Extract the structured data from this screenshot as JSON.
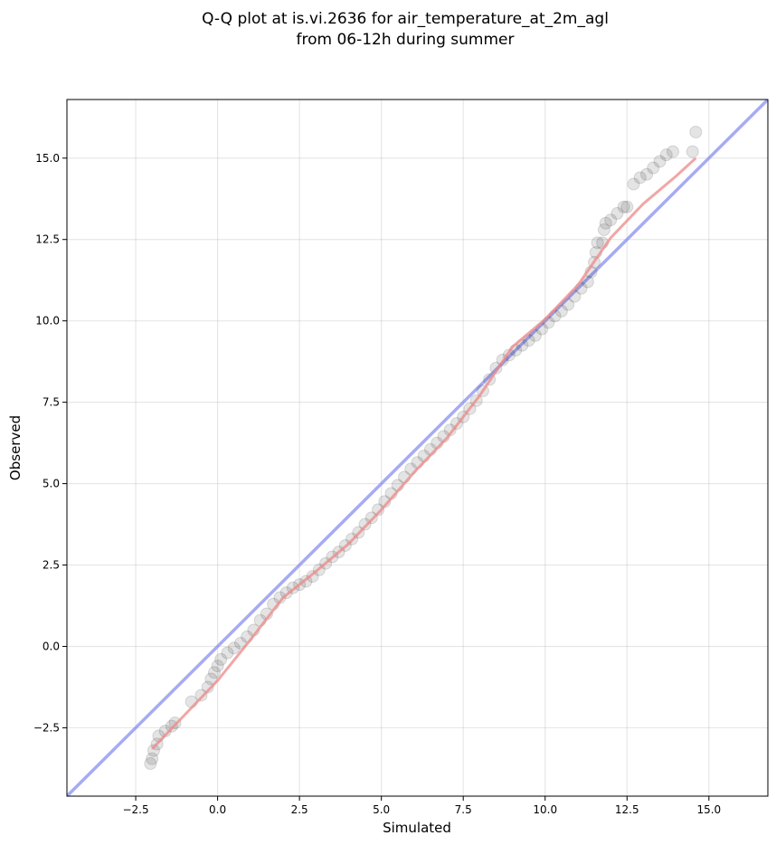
{
  "chart_data": {
    "type": "scatter",
    "title_lines": [
      "Q-Q plot at is.vi.2636 for air_temperature_at_2m_agl",
      "from 06-12h during summer"
    ],
    "xlabel": "Simulated",
    "ylabel": "Observed",
    "xlim": [
      -4.6,
      16.8
    ],
    "ylim": [
      -4.6,
      16.8
    ],
    "x_ticks": [
      -2.5,
      0.0,
      2.5,
      5.0,
      7.5,
      10.0,
      12.5,
      15.0
    ],
    "x_tick_labels": [
      "−2.5",
      "0.0",
      "2.5",
      "5.0",
      "7.5",
      "10.0",
      "12.5",
      "15.0"
    ],
    "y_ticks": [
      -2.5,
      0.0,
      2.5,
      5.0,
      7.5,
      10.0,
      12.5,
      15.0
    ],
    "y_tick_labels": [
      "−2.5",
      "0.0",
      "2.5",
      "5.0",
      "7.5",
      "10.0",
      "12.5",
      "15.0"
    ],
    "grid": true,
    "identity_line": {
      "from": [
        -4.6,
        -4.6
      ],
      "to": [
        16.8,
        16.8
      ],
      "color": "#8088ee"
    },
    "fit_line": {
      "color": "#ee8888",
      "points": [
        [
          -2.0,
          -3.15
        ],
        [
          -1.0,
          -2.1
        ],
        [
          0.0,
          -1.05
        ],
        [
          1.0,
          0.2
        ],
        [
          2.0,
          1.5
        ],
        [
          3.0,
          2.3
        ],
        [
          4.0,
          3.15
        ],
        [
          5.0,
          4.2
        ],
        [
          6.0,
          5.35
        ],
        [
          7.0,
          6.4
        ],
        [
          8.0,
          7.7
        ],
        [
          9.0,
          9.2
        ],
        [
          10.0,
          10.05
        ],
        [
          11.0,
          11.1
        ],
        [
          12.0,
          12.55
        ],
        [
          13.0,
          13.6
        ],
        [
          14.0,
          14.45
        ],
        [
          14.6,
          15.0
        ]
      ]
    },
    "series": [
      {
        "color": "#222222",
        "points": [
          [
            -2.05,
            -3.6
          ],
          [
            -2.0,
            -3.45
          ],
          [
            -1.95,
            -3.2
          ],
          [
            -1.85,
            -3.0
          ],
          [
            -1.8,
            -2.75
          ],
          [
            -1.6,
            -2.6
          ],
          [
            -1.4,
            -2.45
          ],
          [
            -1.3,
            -2.35
          ],
          [
            -0.8,
            -1.7
          ],
          [
            -0.5,
            -1.5
          ],
          [
            -0.3,
            -1.25
          ],
          [
            -0.2,
            -1.0
          ],
          [
            -0.1,
            -0.8
          ],
          [
            0.0,
            -0.6
          ],
          [
            0.1,
            -0.4
          ],
          [
            0.3,
            -0.2
          ],
          [
            0.5,
            -0.05
          ],
          [
            0.7,
            0.1
          ],
          [
            0.9,
            0.3
          ],
          [
            1.1,
            0.5
          ],
          [
            1.3,
            0.8
          ],
          [
            1.5,
            1.0
          ],
          [
            1.7,
            1.3
          ],
          [
            1.9,
            1.5
          ],
          [
            2.1,
            1.65
          ],
          [
            2.3,
            1.8
          ],
          [
            2.5,
            1.9
          ],
          [
            2.7,
            2.0
          ],
          [
            2.9,
            2.15
          ],
          [
            3.1,
            2.35
          ],
          [
            3.3,
            2.55
          ],
          [
            3.5,
            2.75
          ],
          [
            3.7,
            2.9
          ],
          [
            3.9,
            3.1
          ],
          [
            4.1,
            3.3
          ],
          [
            4.3,
            3.5
          ],
          [
            4.5,
            3.75
          ],
          [
            4.7,
            3.95
          ],
          [
            4.9,
            4.2
          ],
          [
            5.1,
            4.45
          ],
          [
            5.3,
            4.7
          ],
          [
            5.5,
            4.95
          ],
          [
            5.7,
            5.2
          ],
          [
            5.9,
            5.45
          ],
          [
            6.1,
            5.65
          ],
          [
            6.3,
            5.85
          ],
          [
            6.5,
            6.05
          ],
          [
            6.7,
            6.25
          ],
          [
            6.9,
            6.45
          ],
          [
            7.1,
            6.65
          ],
          [
            7.3,
            6.85
          ],
          [
            7.5,
            7.05
          ],
          [
            7.7,
            7.3
          ],
          [
            7.9,
            7.55
          ],
          [
            8.1,
            7.85
          ],
          [
            8.3,
            8.2
          ],
          [
            8.5,
            8.55
          ],
          [
            8.7,
            8.8
          ],
          [
            8.9,
            8.95
          ],
          [
            9.1,
            9.1
          ],
          [
            9.3,
            9.25
          ],
          [
            9.5,
            9.4
          ],
          [
            9.7,
            9.55
          ],
          [
            9.9,
            9.75
          ],
          [
            10.1,
            9.95
          ],
          [
            10.3,
            10.15
          ],
          [
            10.5,
            10.3
          ],
          [
            10.7,
            10.5
          ],
          [
            10.9,
            10.75
          ],
          [
            11.1,
            11.0
          ],
          [
            11.3,
            11.2
          ],
          [
            11.4,
            11.5
          ],
          [
            11.5,
            11.8
          ],
          [
            11.55,
            12.1
          ],
          [
            11.6,
            12.4
          ],
          [
            11.75,
            12.4
          ],
          [
            11.8,
            12.8
          ],
          [
            11.85,
            13.0
          ],
          [
            12.0,
            13.1
          ],
          [
            12.2,
            13.3
          ],
          [
            12.4,
            13.5
          ],
          [
            12.5,
            13.5
          ],
          [
            12.7,
            14.2
          ],
          [
            12.9,
            14.4
          ],
          [
            13.1,
            14.5
          ],
          [
            13.3,
            14.7
          ],
          [
            13.5,
            14.9
          ],
          [
            13.7,
            15.1
          ],
          [
            13.9,
            15.2
          ],
          [
            14.5,
            15.2
          ],
          [
            14.6,
            15.8
          ]
        ]
      }
    ]
  }
}
